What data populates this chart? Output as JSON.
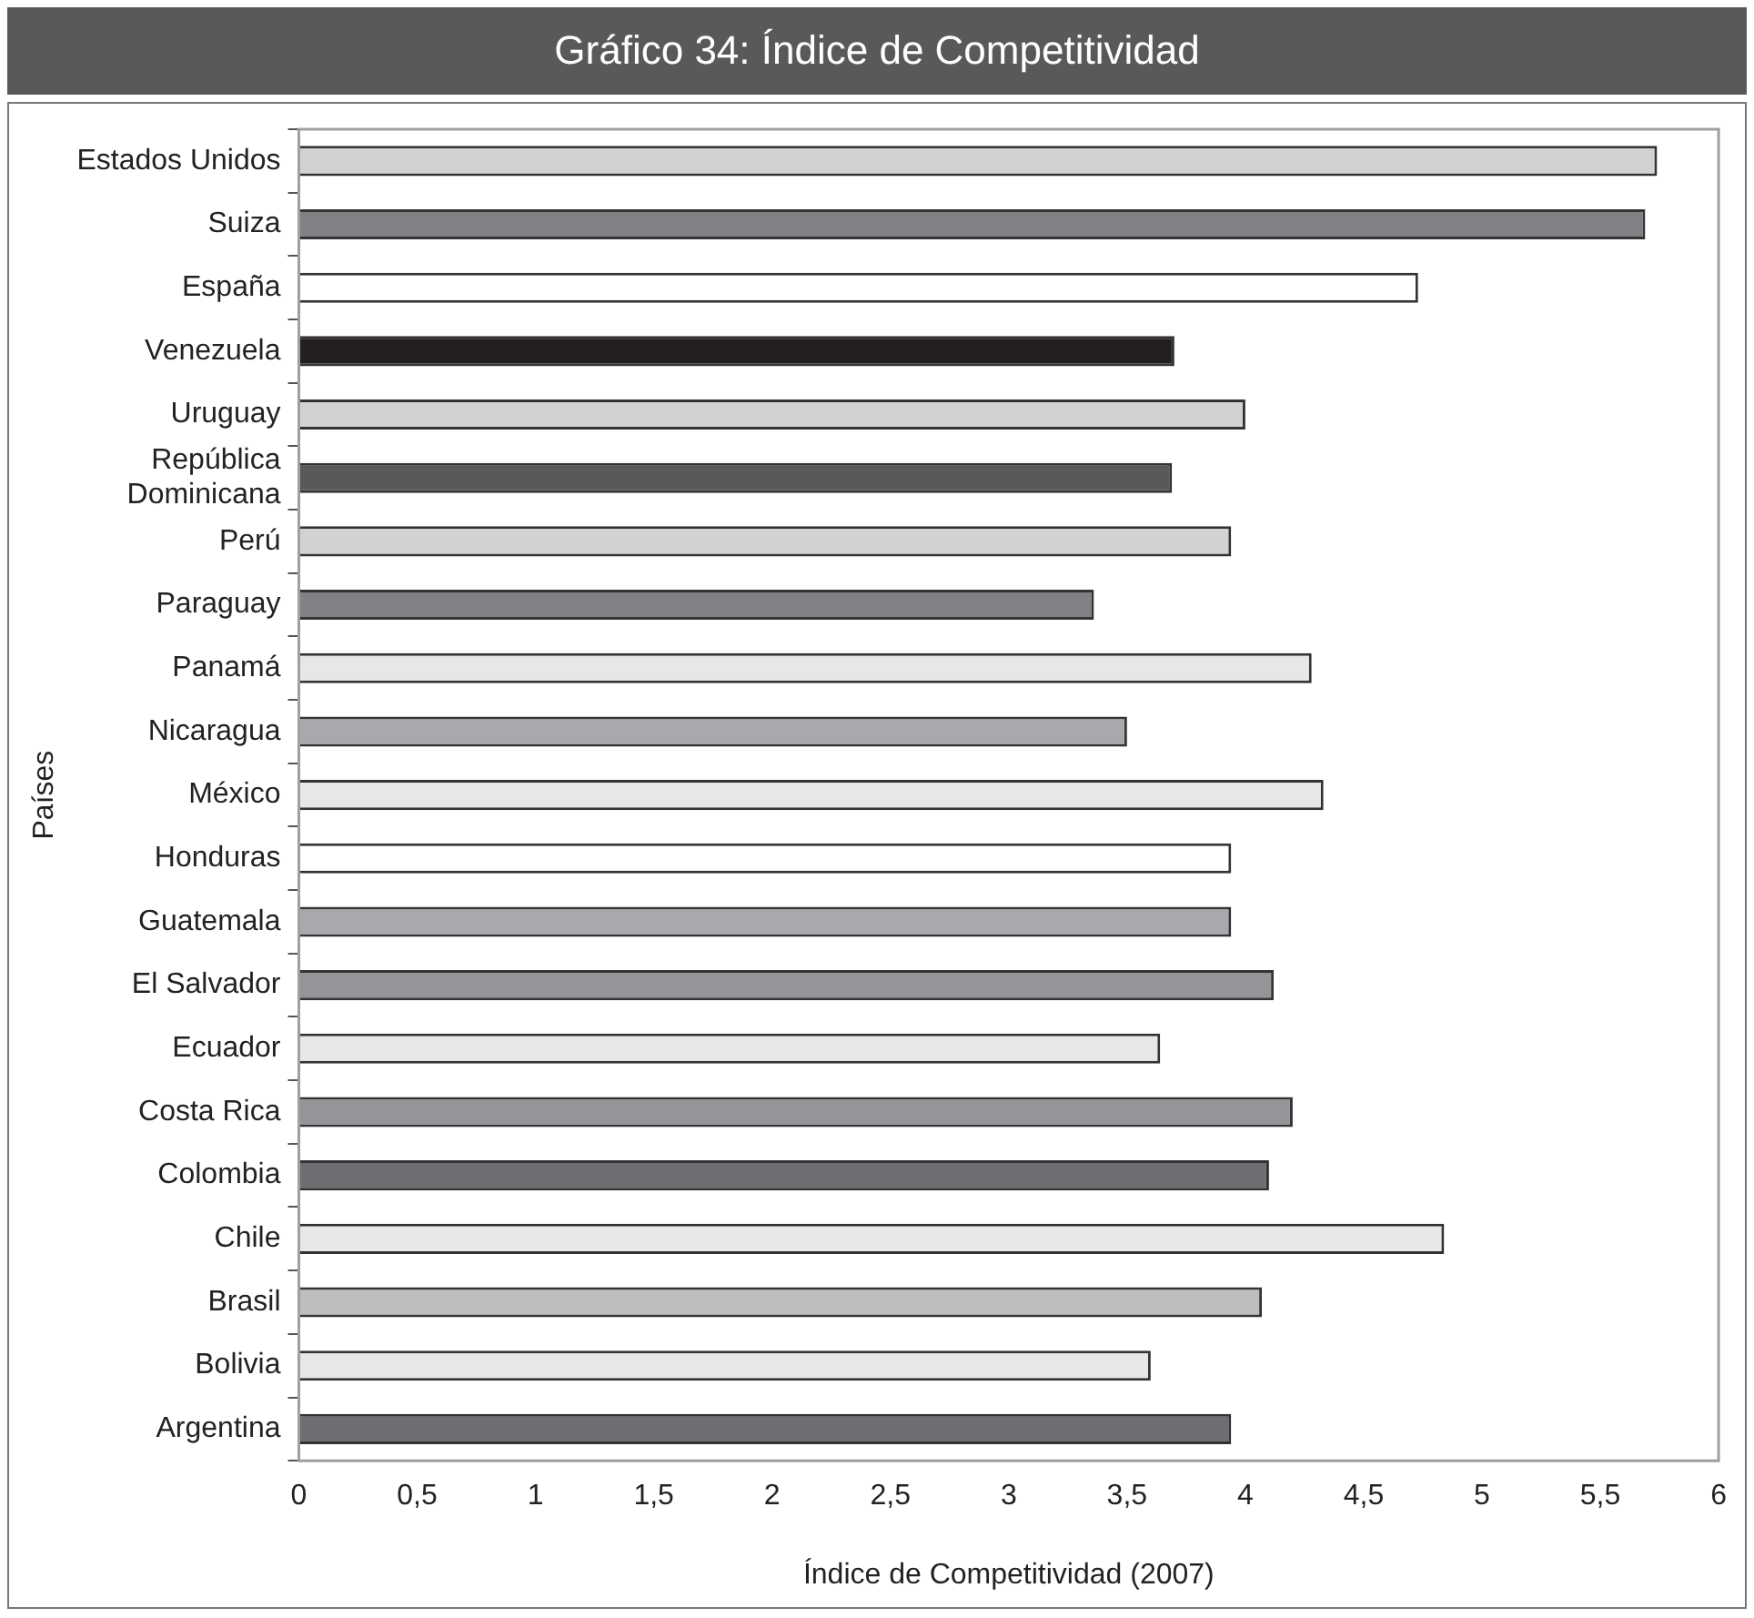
{
  "chart_data": {
    "type": "bar",
    "orientation": "horizontal",
    "title": "Gráfico 34: Índice de Competitividad",
    "xlabel": "Índice de Competitividad (2007)",
    "ylabel": "Países",
    "categories": [
      "Estados Unidos",
      "Suiza",
      "España",
      "Venezuela",
      "Uruguay",
      "República Dominicana",
      "Perú",
      "Paraguay",
      "Panamá",
      "Nicaragua",
      "México",
      "Honduras",
      "Guatemala",
      "El Salvador",
      "Ecuador",
      "Costa Rica",
      "Colombia",
      "Chile",
      "Brasil",
      "Bolivia",
      "Argentina"
    ],
    "values": [
      5.74,
      5.69,
      4.73,
      3.7,
      4.0,
      3.69,
      3.94,
      3.36,
      4.28,
      3.5,
      4.33,
      3.94,
      3.94,
      4.12,
      3.64,
      4.2,
      4.1,
      4.84,
      4.07,
      3.6,
      3.94
    ],
    "colors": [
      "#d1d2d4",
      "#808184",
      "#ffffff",
      "#231f20",
      "#d1d2d4",
      "#58595b",
      "#d1d2d4",
      "#808184",
      "#e6e7e8",
      "#a7a9ac",
      "#e6e7e8",
      "#ffffff",
      "#a7a9ac",
      "#939598",
      "#e6e7e8",
      "#939598",
      "#6d6e71",
      "#e6e7e8",
      "#bcbec0",
      "#e6e7e8",
      "#6d6e71"
    ],
    "xlim": [
      0,
      6
    ],
    "xticks": [
      0,
      {
        "value": 0.5,
        "label": "0,5"
      },
      1,
      {
        "value": 1.5,
        "label": "1,5"
      },
      2,
      {
        "value": 2.5,
        "label": "2,5"
      },
      3,
      {
        "value": 3.5,
        "label": "3,5"
      },
      4,
      {
        "value": 4.5,
        "label": "4,5"
      },
      5,
      {
        "value": 5.5,
        "label": "5,5"
      },
      6
    ],
    "grid": false,
    "legend": false
  }
}
